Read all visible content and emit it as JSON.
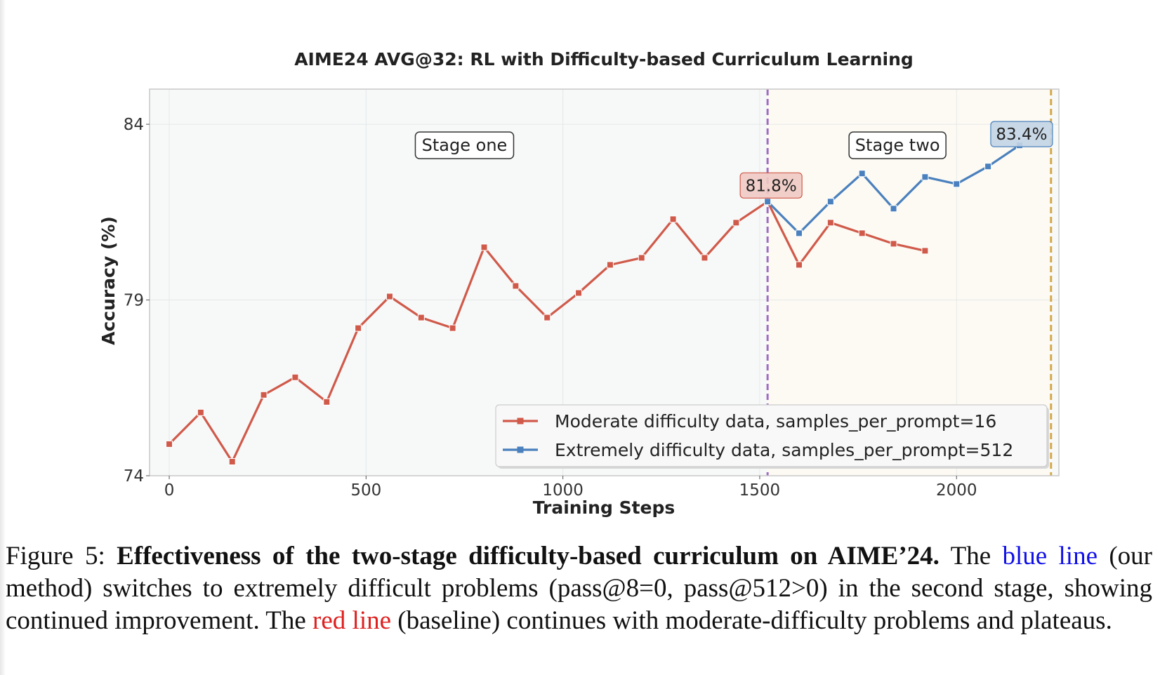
{
  "chart_data": {
    "type": "line",
    "title": "AIME24 AVG@32: RL with Difficulty-based Curriculum Learning",
    "xlabel": "Training Steps",
    "ylabel": "Accuracy (%)",
    "xlim": [
      -50,
      2260
    ],
    "ylim": [
      74,
      85
    ],
    "xticks": [
      0,
      500,
      1000,
      1500,
      2000
    ],
    "yticks": [
      74,
      79,
      84
    ],
    "grid": true,
    "legend_position": "bottom-right",
    "stage_regions": [
      {
        "name": "stage-one",
        "label": "Stage one",
        "x_range": [
          -50,
          1520
        ]
      },
      {
        "name": "stage-two",
        "label": "Stage two",
        "x_range": [
          1520,
          2240
        ]
      }
    ],
    "vlines": [
      {
        "name": "stage-boundary",
        "x": 1520,
        "color": "#a06cc0"
      },
      {
        "name": "end-line",
        "x": 2240,
        "color": "#d4a84a"
      }
    ],
    "series": [
      {
        "name": "Moderate difficulty data, samples_per_prompt=16",
        "color": "#d05a4a",
        "x": [
          0,
          80,
          160,
          240,
          320,
          400,
          480,
          560,
          640,
          720,
          800,
          880,
          960,
          1040,
          1120,
          1200,
          1280,
          1360,
          1440,
          1520,
          1600,
          1680,
          1760,
          1840,
          1920
        ],
        "y": [
          74.9,
          75.8,
          74.4,
          76.3,
          76.8,
          76.1,
          78.2,
          79.1,
          78.5,
          78.2,
          80.5,
          79.4,
          78.5,
          79.2,
          80.0,
          80.2,
          81.3,
          80.2,
          81.2,
          81.8,
          80.0,
          81.2,
          80.9,
          80.6,
          80.4
        ]
      },
      {
        "name": "Extremely difficulty data, samples_per_prompt=512",
        "color": "#4a80bd",
        "x": [
          1520,
          1600,
          1680,
          1760,
          1840,
          1920,
          2000,
          2080,
          2160
        ],
        "y": [
          81.8,
          80.9,
          81.8,
          82.6,
          81.6,
          82.5,
          82.3,
          82.8,
          83.4
        ]
      }
    ],
    "annotations": [
      {
        "name": "peak-red",
        "text": "81.8%",
        "x": 1520,
        "y": 81.8,
        "series": 0
      },
      {
        "name": "peak-blue",
        "text": "83.4%",
        "x": 2160,
        "y": 83.4,
        "series": 1
      }
    ]
  },
  "caption": {
    "prefix": "Figure 5: ",
    "bold": "Effectiveness of the two-stage difficulty-based curriculum on AIME’24.",
    "part1": " The ",
    "blue_text": "blue line",
    "part2": " (our method) switches to extremely difficult problems (pass@8=0, pass@512>0) in the second stage, showing continued improvement. The ",
    "red_text": "red line",
    "part3": " (baseline) continues with moderate-difficulty problems and plateaus."
  }
}
